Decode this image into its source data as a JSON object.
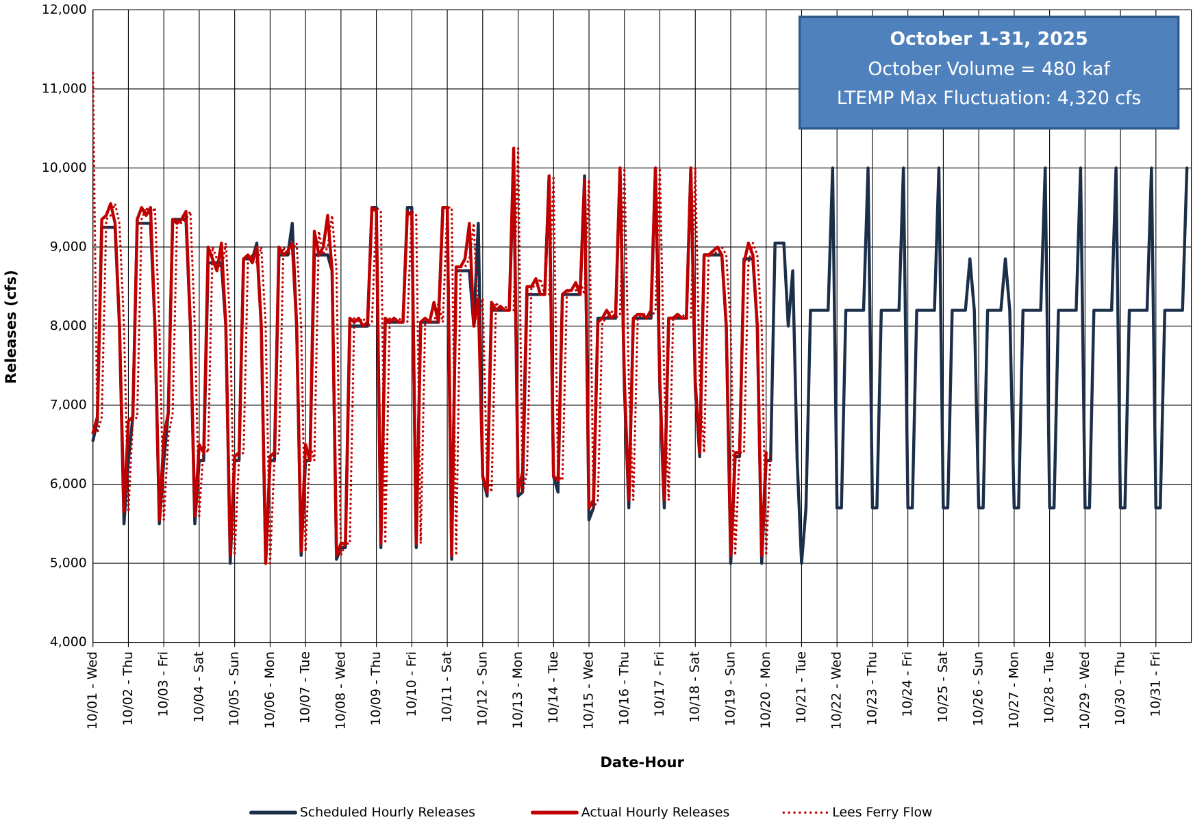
{
  "chart_data": {
    "type": "line",
    "x_label": "Date-Hour",
    "y_label": "Releases (cfs)",
    "annotation": [
      "October 1-31, 2025",
      "October Volume = 480 kaf",
      "LTEMP Max Fluctuation: 4,320 cfs"
    ],
    "ylim": [
      4000,
      12000
    ],
    "yticks": [
      {
        "value": 4000,
        "label": "4,000"
      },
      {
        "value": 5000,
        "label": "5,000"
      },
      {
        "value": 6000,
        "label": "6,000"
      },
      {
        "value": 7000,
        "label": "7,000"
      },
      {
        "value": 8000,
        "label": "8,000"
      },
      {
        "value": 9000,
        "label": "9,000"
      },
      {
        "value": 10000,
        "label": "10,000"
      },
      {
        "value": 11000,
        "label": "11,000"
      },
      {
        "value": 12000,
        "label": "12,000"
      }
    ],
    "grid": true,
    "legend": "bottom",
    "categories": [
      "10/01 - Wed",
      null,
      null,
      null,
      null,
      null,
      null,
      null,
      "10/02 - Thu",
      null,
      null,
      null,
      null,
      null,
      null,
      null,
      "10/03 - Fri",
      null,
      null,
      null,
      null,
      null,
      null,
      null,
      "10/04 - Sat",
      null,
      null,
      null,
      null,
      null,
      null,
      null,
      "10/05 - Sun",
      null,
      null,
      null,
      null,
      null,
      null,
      null,
      "10/06 - Mon",
      null,
      null,
      null,
      null,
      null,
      null,
      null,
      "10/07 - Tue",
      null,
      null,
      null,
      null,
      null,
      null,
      null,
      "10/08 - Wed",
      null,
      null,
      null,
      null,
      null,
      null,
      null,
      "10/09 - Thu",
      null,
      null,
      null,
      null,
      null,
      null,
      null,
      "10/10 - Fri",
      null,
      null,
      null,
      null,
      null,
      null,
      null,
      "10/11 - Sat",
      null,
      null,
      null,
      null,
      null,
      null,
      null,
      "10/12 - Sun",
      null,
      null,
      null,
      null,
      null,
      null,
      null,
      "10/13 - Mon",
      null,
      null,
      null,
      null,
      null,
      null,
      null,
      "10/14 - Tue",
      null,
      null,
      null,
      null,
      null,
      null,
      null,
      "10/15 - Wed",
      null,
      null,
      null,
      null,
      null,
      null,
      null,
      "10/16 - Thu",
      null,
      null,
      null,
      null,
      null,
      null,
      null,
      "10/17 - Fri",
      null,
      null,
      null,
      null,
      null,
      null,
      null,
      "10/18 - Sat",
      null,
      null,
      null,
      null,
      null,
      null,
      null,
      "10/19 - Sun",
      null,
      null,
      null,
      null,
      null,
      null,
      null,
      "10/20 - Mon",
      null,
      null,
      null,
      null,
      null,
      null,
      null,
      "10/21 - Tue",
      null,
      null,
      null,
      null,
      null,
      null,
      null,
      "10/22 - Wed",
      null,
      null,
      null,
      null,
      null,
      null,
      null,
      "10/23 - Thu",
      null,
      null,
      null,
      null,
      null,
      null,
      null,
      "10/24 - Fri",
      null,
      null,
      null,
      null,
      null,
      null,
      null,
      "10/25 - Sat",
      null,
      null,
      null,
      null,
      null,
      null,
      null,
      "10/26 - Sun",
      null,
      null,
      null,
      null,
      null,
      null,
      null,
      "10/27 - Mon",
      null,
      null,
      null,
      null,
      null,
      null,
      null,
      "10/28 - Tue",
      null,
      null,
      null,
      null,
      null,
      null,
      null,
      "10/29 - Wed",
      null,
      null,
      null,
      null,
      null,
      null,
      null,
      "10/30 - Thu",
      null,
      null,
      null,
      null,
      null,
      null,
      null,
      "10/31 - Fri",
      null,
      null,
      null,
      null,
      null,
      null,
      null
    ],
    "series": [
      {
        "name": "Scheduled Hourly Releases",
        "color": "#1b2f4a",
        "dash": "solid",
        "values": [
          6550,
          6800,
          9250,
          9250,
          9250,
          9250,
          8000,
          5500,
          6300,
          6850,
          9300,
          9300,
          9300,
          9300,
          8000,
          5500,
          6300,
          6900,
          9350,
          9350,
          9350,
          9350,
          8000,
          5500,
          6300,
          6300,
          8800,
          8800,
          8800,
          8800,
          8000,
          5000,
          6300,
          6300,
          8850,
          8850,
          8850,
          9050,
          8000,
          5000,
          6300,
          6300,
          8900,
          8900,
          8900,
          9300,
          8000,
          5100,
          6300,
          6300,
          8900,
          8900,
          8900,
          8900,
          8700,
          5050,
          5200,
          5200,
          8000,
          8000,
          8000,
          8000,
          8000,
          9500,
          9500,
          5200,
          8050,
          8050,
          8050,
          8050,
          8050,
          9500,
          9500,
          5200,
          8050,
          8050,
          8050,
          8050,
          8050,
          9500,
          9500,
          5050,
          8700,
          8700,
          8700,
          8700,
          8000,
          9300,
          6100,
          5850,
          8200,
          8200,
          8200,
          8200,
          8200,
          10000,
          5850,
          5900,
          8400,
          8400,
          8400,
          8400,
          8400,
          9900,
          6100,
          5900,
          8400,
          8400,
          8400,
          8400,
          8400,
          9900,
          5550,
          5700,
          8100,
          8100,
          8100,
          8100,
          8100,
          10000,
          7200,
          5700,
          8100,
          8100,
          8100,
          8100,
          8100,
          10000,
          7200,
          5700,
          8100,
          8100,
          8100,
          8100,
          8100,
          10000,
          7200,
          6350,
          8900,
          8900,
          8900,
          8900,
          8900,
          8000,
          5000,
          6350,
          6350,
          8850,
          8850,
          8850,
          8000,
          5000,
          6300,
          6300,
          9050,
          9050,
          9050,
          8000,
          8700,
          6300,
          5000,
          5700,
          8200,
          8200,
          8200,
          8200,
          8200,
          10000,
          5700,
          5700,
          8200,
          8200,
          8200,
          8200,
          8200,
          10000,
          5700,
          5700,
          8200,
          8200,
          8200,
          8200,
          8200,
          10000,
          5700,
          5700,
          8200,
          8200,
          8200,
          8200,
          8200,
          10000,
          5700,
          5700,
          8200,
          8200,
          8200,
          8200,
          8850,
          8200,
          5700,
          5700,
          8200,
          8200,
          8200,
          8200,
          8850,
          8200,
          5700,
          5700,
          8200,
          8200,
          8200,
          8200,
          8200,
          10000,
          5700,
          5700,
          8200,
          8200,
          8200,
          8200,
          8200,
          10000,
          5700,
          5700,
          8200,
          8200,
          8200,
          8200,
          8200,
          10000,
          5700,
          5700,
          8200,
          8200,
          8200,
          8200,
          8200,
          10000,
          5700,
          5700,
          8200,
          8200,
          8200,
          8200,
          8200,
          10000
        ]
      },
      {
        "name": "Actual Hourly Releases",
        "color": "#c00000",
        "dash": "solid",
        "values": [
          6650,
          6850,
          9350,
          9400,
          9550,
          9300,
          8000,
          5650,
          6800,
          6850,
          9350,
          9500,
          9400,
          9500,
          8000,
          5550,
          6600,
          6900,
          9350,
          9300,
          9350,
          9450,
          8000,
          5600,
          6500,
          6400,
          9000,
          8850,
          8700,
          9050,
          8000,
          5100,
          6350,
          6400,
          8850,
          8900,
          8800,
          9000,
          8000,
          5000,
          6350,
          6400,
          9000,
          8900,
          8950,
          9050,
          8000,
          5150,
          6500,
          6300,
          9200,
          8900,
          9000,
          9400,
          8700,
          5100,
          5250,
          5250,
          8100,
          8050,
          8100,
          8000,
          8050,
          9500,
          9450,
          5250,
          8100,
          8050,
          8100,
          8050,
          8050,
          9450,
          9400,
          5250,
          8050,
          8100,
          8050,
          8300,
          8050,
          9500,
          9500,
          5100,
          8750,
          8750,
          8850,
          9300,
          8000,
          8350,
          6100,
          5900,
          8300,
          8200,
          8250,
          8200,
          8200,
          10250,
          5900,
          6150,
          8500,
          8500,
          8600,
          8400,
          8400,
          9900,
          6100,
          6050,
          8400,
          8450,
          8450,
          8550,
          8400,
          9850,
          5700,
          5800,
          8050,
          8100,
          8200,
          8100,
          8150,
          10000,
          7300,
          5800,
          8100,
          8150,
          8150,
          8100,
          8200,
          10000,
          7300,
          5800,
          8100,
          8100,
          8150,
          8100,
          8100,
          10000,
          7300,
          6400,
          8900,
          8900,
          8950,
          9000,
          8900,
          8000,
          5100,
          6400,
          6400,
          8800,
          9050,
          8900,
          8000,
          5100,
          6400,
          null,
          null,
          null,
          null,
          null,
          null,
          null,
          null,
          null,
          null,
          null,
          null,
          null,
          null,
          null,
          null,
          null,
          null,
          null,
          null,
          null,
          null,
          null,
          null,
          null,
          null,
          null,
          null,
          null,
          null,
          null,
          null,
          null,
          null,
          null,
          null,
          null,
          null,
          null,
          null,
          null,
          null,
          null,
          null,
          null,
          null,
          null,
          null,
          null,
          null,
          null,
          null,
          null,
          null,
          null,
          null,
          null,
          null,
          null,
          null,
          null,
          null,
          null,
          null,
          null,
          null,
          null,
          null,
          null,
          null,
          null,
          null,
          null,
          null,
          null,
          null,
          null,
          null,
          null,
          null,
          null,
          null,
          null,
          null,
          null,
          null,
          null,
          null,
          null,
          null,
          null,
          null,
          null,
          null,
          null
        ]
      },
      {
        "name": "Lees Ferry Flow",
        "color": "#c00000",
        "dash": "dotted",
        "values": [
          11200,
          6650,
          6850,
          9350,
          9400,
          9550,
          9300,
          8000,
          5650,
          6800,
          6850,
          9350,
          9500,
          9400,
          9500,
          8000,
          5550,
          6600,
          6900,
          9350,
          9300,
          9350,
          9450,
          8000,
          5600,
          6500,
          6400,
          9000,
          8850,
          8700,
          9050,
          8000,
          5100,
          6350,
          6400,
          8850,
          8900,
          8800,
          9000,
          8000,
          5000,
          6350,
          6400,
          9000,
          8900,
          8950,
          9050,
          8000,
          5150,
          6500,
          6300,
          9200,
          8900,
          9000,
          9400,
          8700,
          5100,
          5250,
          5250,
          8100,
          8050,
          8100,
          8000,
          8050,
          9500,
          9450,
          5250,
          8100,
          8050,
          8100,
          8050,
          8050,
          9450,
          9400,
          5250,
          8050,
          8100,
          8050,
          8300,
          8050,
          9500,
          9500,
          5100,
          8750,
          8750,
          8850,
          9300,
          8000,
          8350,
          6100,
          5900,
          8300,
          8200,
          8250,
          8200,
          8200,
          10250,
          5900,
          6150,
          8500,
          8500,
          8600,
          8400,
          8400,
          9900,
          6100,
          6050,
          8400,
          8450,
          8450,
          8550,
          8400,
          9850,
          5700,
          5800,
          8050,
          8100,
          8200,
          8100,
          8150,
          10000,
          7300,
          5800,
          8100,
          8150,
          8150,
          8100,
          8200,
          10000,
          7300,
          5800,
          8100,
          8100,
          8150,
          8100,
          8100,
          10000,
          7300,
          6400,
          8900,
          8900,
          8950,
          9000,
          8900,
          8000,
          5100,
          6400,
          6400,
          8800,
          9050,
          8900,
          8000,
          5100,
          6400,
          null,
          null,
          null,
          null,
          null,
          null,
          null,
          null,
          null,
          null,
          null,
          null,
          null,
          null,
          null,
          null,
          null,
          null,
          null,
          null,
          null,
          null,
          null,
          null,
          null,
          null,
          null,
          null,
          null,
          null,
          null,
          null,
          null,
          null,
          null,
          null,
          null,
          null,
          null,
          null,
          null,
          null,
          null,
          null,
          null,
          null,
          null,
          null,
          null,
          null,
          null,
          null,
          null,
          null,
          null,
          null,
          null,
          null,
          null,
          null,
          null,
          null,
          null,
          null,
          null,
          null,
          null,
          null,
          null,
          null,
          null,
          null,
          null,
          null,
          null,
          null,
          null,
          null,
          null,
          null,
          null,
          null,
          null,
          null,
          null,
          null,
          null,
          null,
          null,
          null,
          null,
          null,
          null,
          null
        ]
      }
    ]
  }
}
